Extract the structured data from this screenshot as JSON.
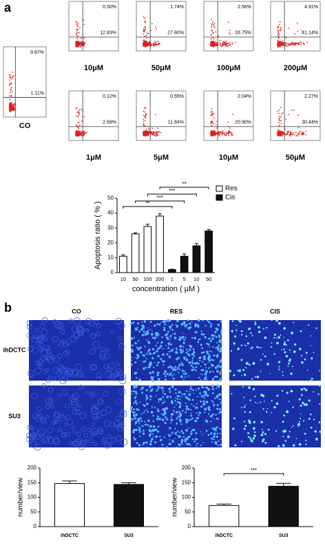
{
  "panel_a": {
    "label": "a",
    "control": {
      "name": "CO",
      "upper_right": "0.67%",
      "lower_right": "1.11%"
    },
    "res": [
      {
        "dose": "10μM",
        "upper_right": "0.50%",
        "lower_right": "12.83%"
      },
      {
        "dose": "50μM",
        "upper_right": "1.74%",
        "lower_right": "27.80%"
      },
      {
        "dose": "100μM",
        "upper_right": "2.56%",
        "lower_right": "33.75%"
      },
      {
        "dose": "200μM",
        "upper_right": "4.91%",
        "lower_right": "41.14%"
      }
    ],
    "cis": [
      {
        "dose": "1μM",
        "upper_right": "0.12%",
        "lower_right": "2.69%"
      },
      {
        "dose": "5μM",
        "upper_right": "0.55%",
        "lower_right": "11.84%"
      },
      {
        "dose": "10μM",
        "upper_right": "2.04%",
        "lower_right": "20.90%"
      },
      {
        "dose": "50μM",
        "upper_right": "2.27%",
        "lower_right": "30.44%"
      }
    ]
  },
  "panel_b": {
    "label": "b",
    "columns": [
      "CO",
      "RES",
      "CIS"
    ],
    "rows": [
      "ihDCTC",
      "SU3"
    ]
  },
  "chart_data": [
    {
      "type": "bar",
      "ylabel": "Apoptosis ratio ( % )",
      "xlabel": "concentration ( μM )",
      "categories": [
        "10",
        "50",
        "100",
        "200",
        "1",
        "5",
        "10",
        "50"
      ],
      "series": [
        {
          "name": "Res",
          "color": "#ffffff",
          "values": [
            11,
            26,
            31,
            38,
            null,
            null,
            null,
            null
          ],
          "errors": [
            1,
            0.8,
            1.5,
            1.5,
            null,
            null,
            null,
            null
          ]
        },
        {
          "name": "Cis",
          "color": "#111111",
          "values": [
            null,
            null,
            null,
            null,
            2,
            11,
            18,
            28
          ],
          "errors": [
            null,
            null,
            null,
            null,
            0.3,
            1.5,
            1.5,
            1
          ]
        }
      ],
      "annotations": [
        "**",
        "***",
        "***",
        "**"
      ],
      "ylim": [
        0,
        50
      ],
      "yticks": [
        0,
        10,
        20,
        30,
        40,
        50
      ],
      "legend": "upper right"
    },
    {
      "type": "bar",
      "ylabel": "number/view",
      "categories": [
        "ihDCTC",
        "SU3"
      ],
      "values": [
        147,
        144
      ],
      "errors": [
        9,
        6
      ],
      "colors": [
        "#ffffff",
        "#111111"
      ],
      "ylim": [
        0,
        200
      ],
      "yticks": [
        0,
        50,
        100,
        150,
        200
      ]
    },
    {
      "type": "bar",
      "ylabel": "number/view",
      "categories": [
        "ihDCTC",
        "SU3"
      ],
      "values": [
        72,
        138
      ],
      "errors": [
        5,
        10
      ],
      "colors": [
        "#ffffff",
        "#111111"
      ],
      "annotations": [
        "***"
      ],
      "ylim": [
        0,
        200
      ],
      "yticks": [
        0,
        50,
        100,
        150,
        200
      ]
    }
  ]
}
